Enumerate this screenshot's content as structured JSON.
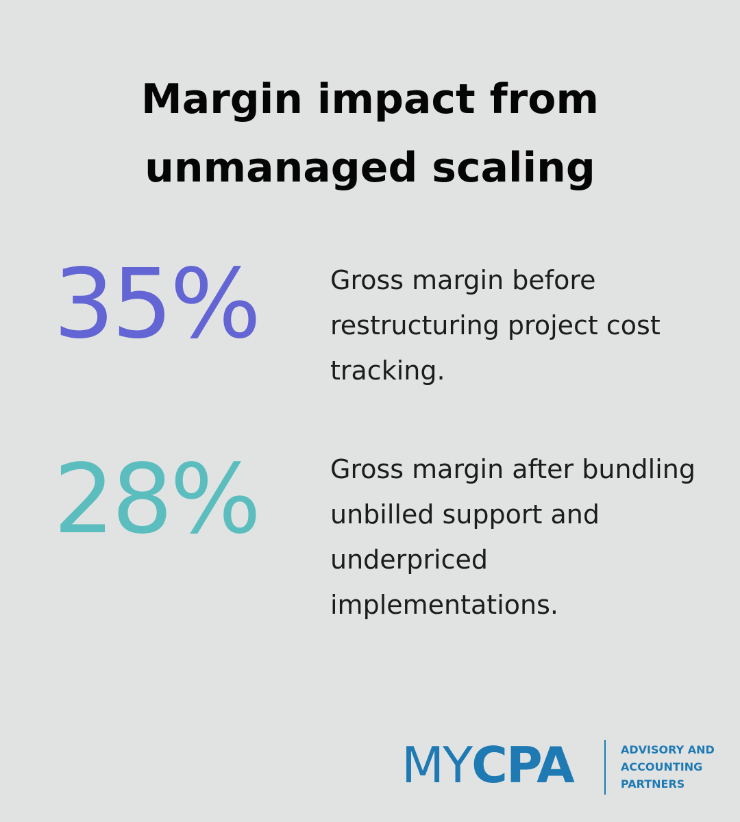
{
  "header": {
    "title": "Margin impact from unmanaged scaling"
  },
  "stats": [
    {
      "value": "35%",
      "description": "Gross margin before restructuring project cost tracking.",
      "color": "#6265d3"
    },
    {
      "value": "28%",
      "description": "Gross margin after bundling unbilled support and underpriced implementations.",
      "color": "#5cbdbf"
    }
  ],
  "logo": {
    "my": "MY",
    "cpa": "CPA",
    "tagline": [
      "ADVISORY AND",
      "ACCOUNTING",
      "PARTNERS"
    ]
  }
}
